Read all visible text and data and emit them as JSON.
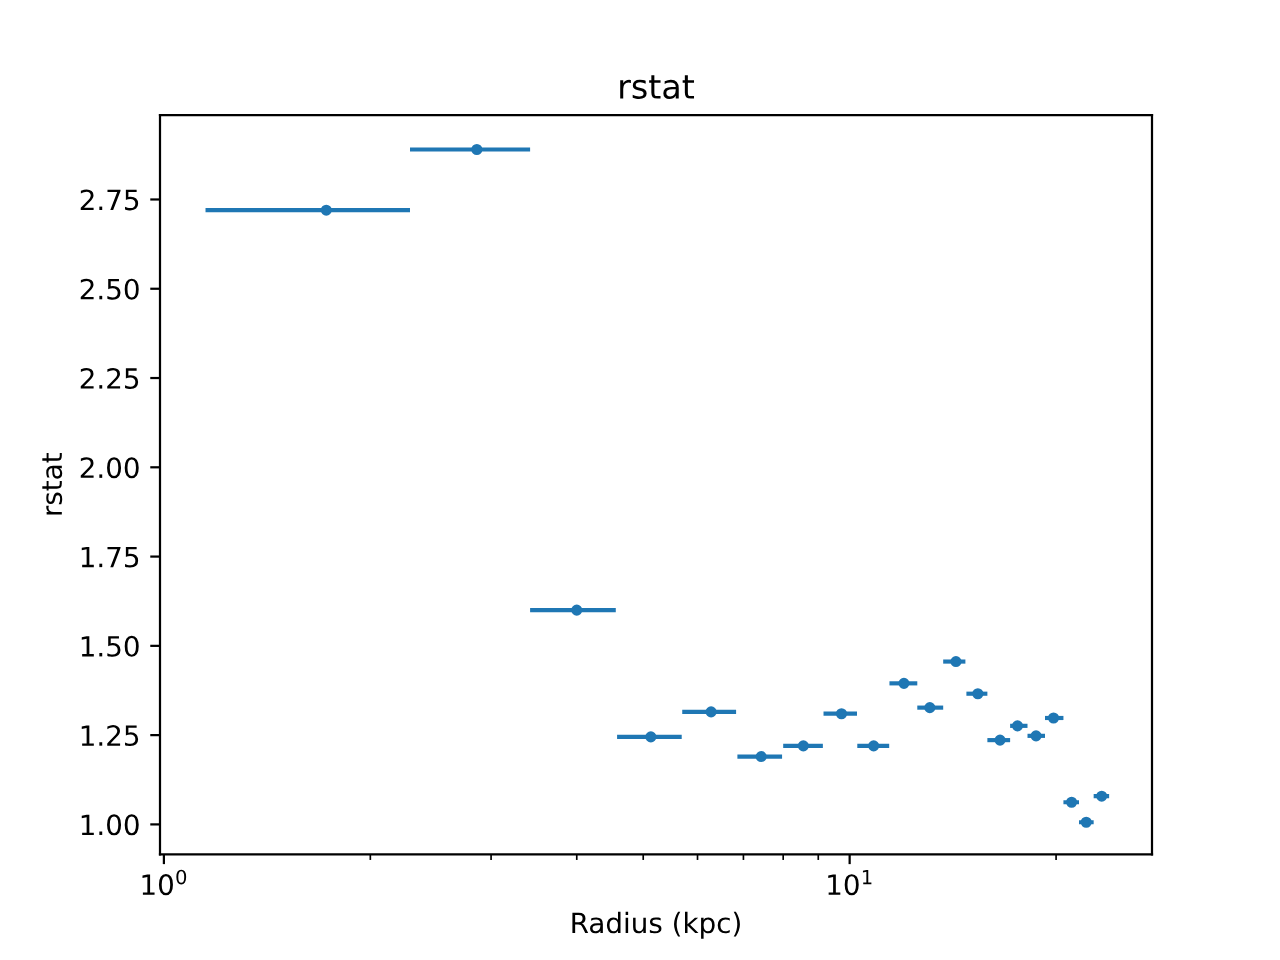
{
  "chart_data": {
    "type": "scatter",
    "title": "rstat",
    "xlabel": "Radius (kpc)",
    "ylabel": "rstat",
    "x": [
      1.725,
      2.86,
      4.0,
      5.13,
      6.28,
      7.43,
      8.56,
      9.73,
      10.84,
      12.0,
      13.09,
      14.29,
      15.38,
      16.57,
      17.57,
      18.7,
      19.83,
      21.07,
      22.13,
      23.31
    ],
    "values": [
      2.72,
      2.89,
      1.6,
      1.245,
      1.315,
      1.19,
      1.22,
      1.31,
      1.22,
      1.395,
      1.327,
      1.456,
      1.366,
      1.236,
      1.276,
      1.248,
      1.298,
      1.062,
      1.006,
      1.079
    ],
    "xerrors": [
      [
        1.15,
        2.285
      ],
      [
        2.285,
        3.42
      ],
      [
        3.42,
        4.56
      ],
      [
        4.58,
        5.69
      ],
      [
        5.7,
        6.83
      ],
      [
        6.86,
        7.97
      ],
      [
        8.0,
        9.14
      ],
      [
        9.16,
        10.25
      ],
      [
        10.26,
        11.42
      ],
      [
        11.43,
        12.55
      ],
      [
        12.55,
        13.69
      ],
      [
        13.69,
        14.75
      ],
      [
        14.8,
        15.88
      ],
      [
        15.88,
        17.14
      ],
      [
        17.14,
        18.17
      ],
      [
        18.17,
        19.27
      ],
      [
        19.27,
        20.5
      ],
      [
        20.5,
        21.6
      ],
      [
        21.6,
        22.69
      ],
      [
        22.69,
        23.9
      ]
    ],
    "color": "#1f77b4",
    "marker": "circle",
    "log": "x",
    "xlim": [
      0.987,
      27.6
    ],
    "ylim": [
      0.916,
      2.986
    ],
    "xticks": [
      {
        "value": 1,
        "label": "10$^{0}$"
      },
      {
        "value": 10,
        "label": "10$^{1}$"
      }
    ],
    "yticks": [
      {
        "value": 1,
        "label": "1.00"
      },
      {
        "value": 1.25,
        "label": "1.25"
      },
      {
        "value": 1.5,
        "label": "1.50"
      },
      {
        "value": 1.75,
        "label": "1.75"
      },
      {
        "value": 2,
        "label": "2.00"
      },
      {
        "value": 2.25,
        "label": "2.25"
      },
      {
        "value": 2.5,
        "label": "2.50"
      },
      {
        "value": 2.75,
        "label": "2.75"
      }
    ],
    "grid": false
  }
}
